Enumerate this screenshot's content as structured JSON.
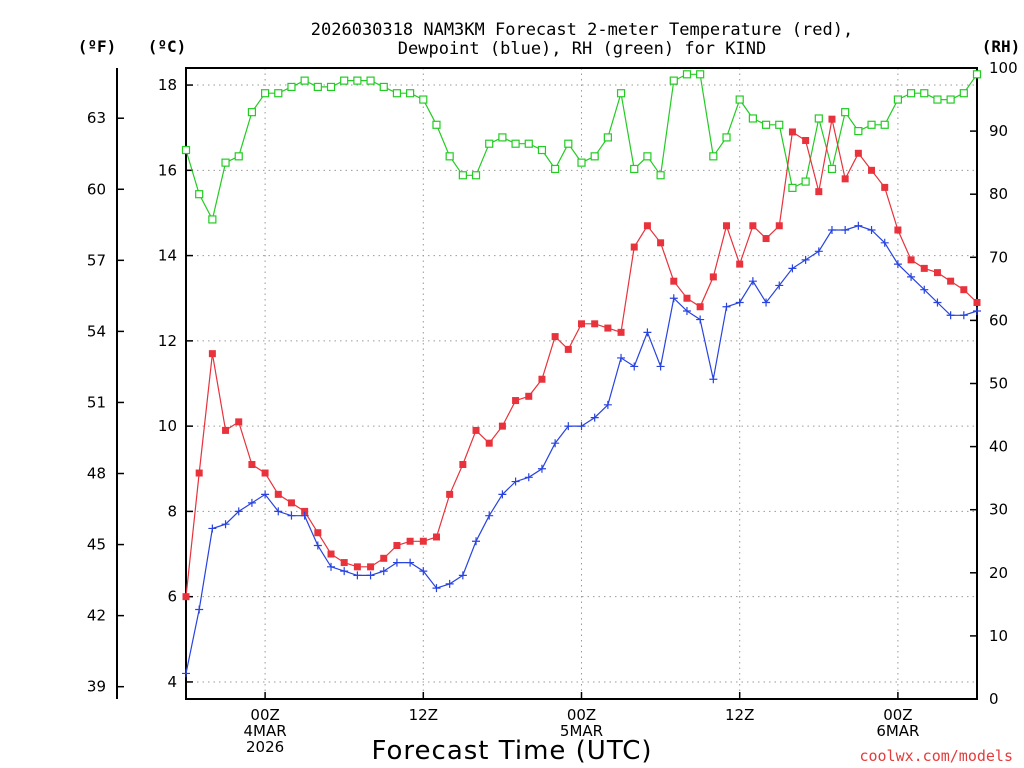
{
  "chart_data": {
    "type": "line",
    "title_lines": [
      "2026030318 NAM3KM Forecast 2-meter Temperature (red),",
      "Dewpoint (blue), RH (green) for KIND"
    ],
    "axis_units": {
      "fahrenheit": "(ºF)",
      "celsius": "(ºC)",
      "rh": "(RH)"
    },
    "xlabel": "Forecast Time (UTC)",
    "credit": "coolwx.com/models",
    "x_range_hours": [
      0,
      60
    ],
    "celsius_axis": {
      "range": [
        3.6,
        18.4
      ],
      "ticks": [
        "4",
        "6",
        "8",
        "10",
        "12",
        "14",
        "16",
        "18"
      ],
      "tick_values": [
        4,
        6,
        8,
        10,
        12,
        14,
        16,
        18
      ]
    },
    "fahrenheit_axis": {
      "ticks": [
        "39",
        "42",
        "45",
        "48",
        "51",
        "54",
        "57",
        "60",
        "63"
      ],
      "tick_values": [
        39,
        42,
        45,
        48,
        51,
        54,
        57,
        60,
        63
      ]
    },
    "rh_axis": {
      "range": [
        0,
        100
      ],
      "ticks": [
        "0",
        "10",
        "20",
        "30",
        "40",
        "50",
        "60",
        "70",
        "80",
        "90",
        "100"
      ],
      "tick_values": [
        0,
        10,
        20,
        30,
        40,
        50,
        60,
        70,
        80,
        90,
        100
      ]
    },
    "x_ticks": [
      {
        "hour": 6,
        "lines": [
          "00Z",
          "4MAR",
          "2026"
        ]
      },
      {
        "hour": 18,
        "lines": [
          "12Z"
        ]
      },
      {
        "hour": 30,
        "lines": [
          "00Z",
          "5MAR"
        ]
      },
      {
        "hour": 42,
        "lines": [
          "12Z"
        ]
      },
      {
        "hour": 54,
        "lines": [
          "00Z",
          "6MAR"
        ]
      }
    ],
    "series": [
      {
        "name": "2-meter Temperature",
        "unit": "°C",
        "color": "#e8323c",
        "marker": "filled-square",
        "values": [
          6.0,
          8.9,
          11.7,
          9.9,
          10.1,
          9.1,
          8.9,
          8.4,
          8.2,
          8.0,
          7.5,
          7.0,
          6.8,
          6.7,
          6.7,
          6.9,
          7.2,
          7.3,
          7.3,
          7.4,
          8.4,
          9.1,
          9.9,
          9.6,
          10.0,
          10.6,
          10.7,
          11.1,
          12.1,
          11.8,
          12.4,
          12.4,
          12.3,
          12.2,
          14.2,
          14.7,
          14.3,
          13.4,
          13.0,
          12.8,
          13.5,
          14.7,
          13.8,
          14.7,
          14.4,
          14.7,
          16.9,
          16.7,
          15.5,
          17.2,
          15.8,
          16.4,
          16.0,
          15.6,
          14.6,
          13.9,
          13.7,
          13.6,
          13.4,
          13.2,
          12.9
        ]
      },
      {
        "name": "Dewpoint",
        "unit": "°C",
        "color": "#2843e0",
        "marker": "plus",
        "values": [
          4.2,
          5.7,
          7.6,
          7.7,
          8.0,
          8.2,
          8.4,
          8.0,
          7.9,
          7.9,
          7.2,
          6.7,
          6.6,
          6.5,
          6.5,
          6.6,
          6.8,
          6.8,
          6.6,
          6.2,
          6.3,
          6.5,
          7.3,
          7.9,
          8.4,
          8.7,
          8.8,
          9.0,
          9.6,
          10.0,
          10.0,
          10.2,
          10.5,
          11.6,
          11.4,
          12.2,
          11.4,
          13.0,
          12.7,
          12.5,
          11.1,
          12.8,
          12.9,
          13.4,
          12.9,
          13.3,
          13.7,
          13.9,
          14.1,
          14.6,
          14.6,
          14.7,
          14.6,
          14.3,
          13.8,
          13.5,
          13.2,
          12.9,
          12.6,
          12.6,
          12.7
        ]
      },
      {
        "name": "RH",
        "unit": "%",
        "color": "#22cc22",
        "marker": "open-square",
        "values": [
          87,
          80,
          76,
          85,
          86,
          93,
          96,
          96,
          97,
          98,
          97,
          97,
          98,
          98,
          98,
          97,
          96,
          96,
          95,
          91,
          86,
          83,
          83,
          88,
          89,
          88,
          88,
          87,
          84,
          88,
          85,
          86,
          89,
          96,
          84,
          86,
          83,
          98,
          99,
          99,
          86,
          89,
          95,
          92,
          91,
          91,
          81,
          82,
          92,
          84,
          93,
          90,
          91,
          91,
          95,
          96,
          96,
          95,
          95,
          96,
          99
        ]
      }
    ]
  }
}
